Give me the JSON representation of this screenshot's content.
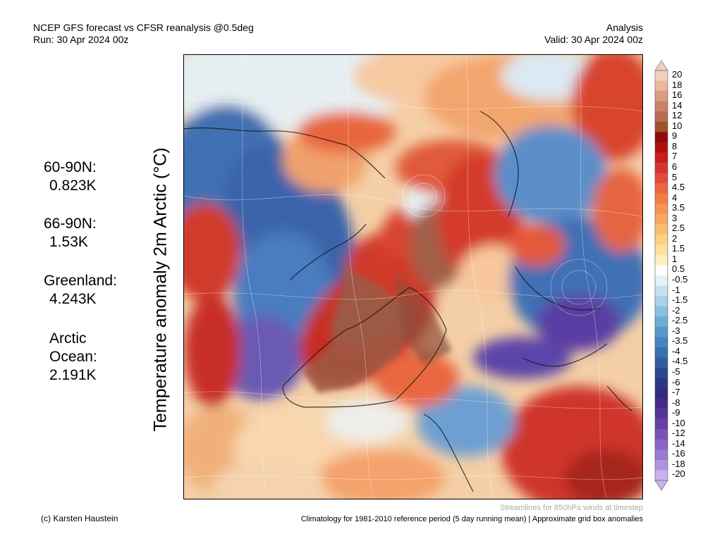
{
  "header": {
    "title_line1": "NCEP GFS forecast vs CFSR reanalysis @0.5deg",
    "title_line2": "Run: 30 Apr 2024 00z",
    "right_line1": "Analysis",
    "right_line2": "Valid: 30 Apr 2024 00z"
  },
  "y_axis_label": "Temperature anomaly 2m Arctic (°C)",
  "stats": [
    {
      "label": "60-90N:",
      "value": "0.823K"
    },
    {
      "label": "66-90N:",
      "value": "1.53K"
    },
    {
      "label": "Greenland:",
      "value": "4.243K"
    },
    {
      "label": "Arctic",
      "label2": "Ocean:",
      "value": "2.191K"
    }
  ],
  "colorbar": {
    "labels": [
      "20",
      "18",
      "16",
      "14",
      "12",
      "10",
      "9",
      "8",
      "7",
      "6",
      "5",
      "4.5",
      "4",
      "3.5",
      "3",
      "2.5",
      "2",
      "1.5",
      "1",
      "0.5",
      "-0.5",
      "-1",
      "-1.5",
      "-2",
      "-2.5",
      "-3",
      "-3.5",
      "-4",
      "-4.5",
      "-5",
      "-6",
      "-7",
      "-8",
      "-9",
      "-10",
      "-12",
      "-14",
      "-16",
      "-18",
      "-20"
    ],
    "colors": [
      "#f2d0c0",
      "#e7b7a0",
      "#d89c80",
      "#c98466",
      "#b66d50",
      "#a0522d",
      "#8e0b0b",
      "#b00f0f",
      "#c81e1e",
      "#d63434",
      "#e34a3a",
      "#ec6440",
      "#f27d48",
      "#f59355",
      "#f8a862",
      "#fabc72",
      "#fcd086",
      "#fde29c",
      "#fef0bc",
      "#ffffff",
      "#e5f1f8",
      "#c6e2f0",
      "#a8d1e8",
      "#8ac0df",
      "#6eadd5",
      "#5599ca",
      "#4585bd",
      "#3a70ae",
      "#315c9f",
      "#2c488f",
      "#2b3885",
      "#352a82",
      "#452c8b",
      "#553697",
      "#6742a6",
      "#7753b5",
      "#8866c5",
      "#9b7ad3",
      "#b094e0",
      "#c8b2ec"
    ]
  },
  "footer": {
    "credit": "(c) Karsten Haustein",
    "streamlines": "Streamlines for 850hPa winds at timestep",
    "climatology": "Climatology for 1981-2010 reference period (5 day running mean) | Approximate grid box anomalies"
  }
}
